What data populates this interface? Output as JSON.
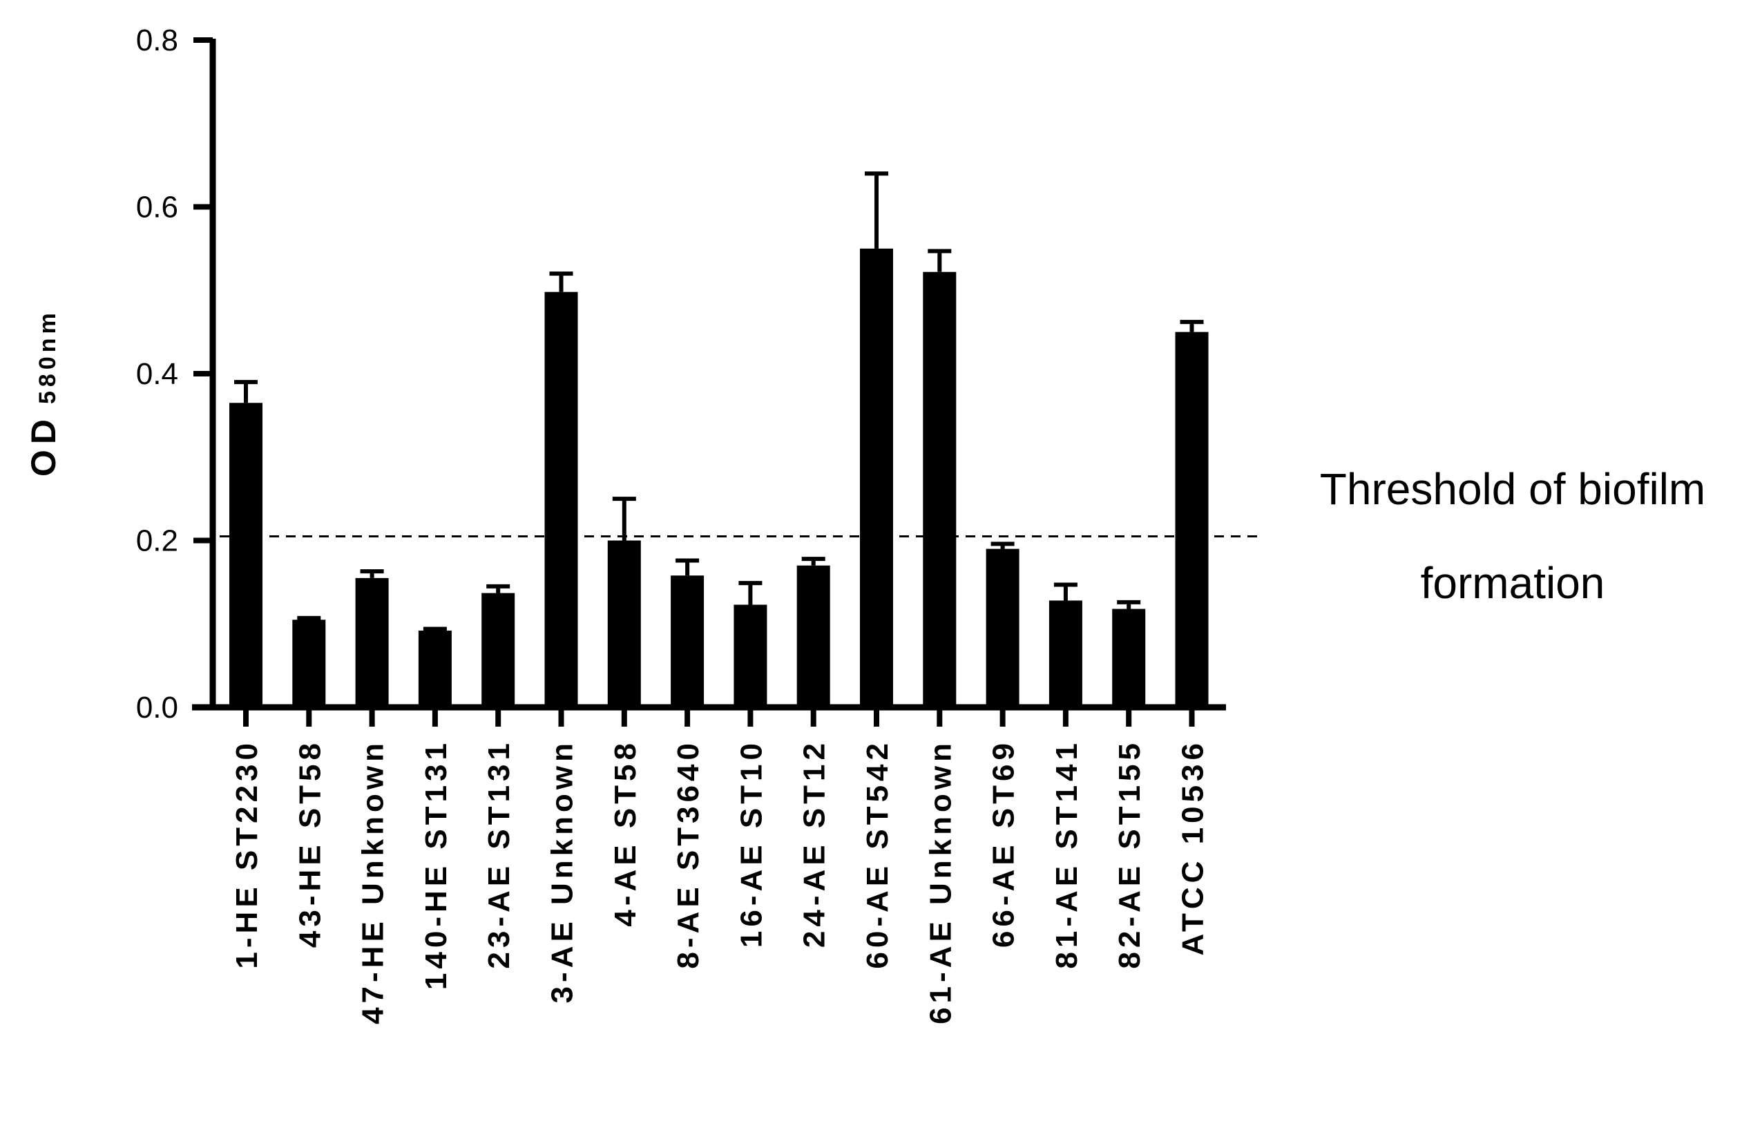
{
  "chart_data": {
    "type": "bar",
    "categories": [
      "1-HE ST2230",
      "43-HE ST58",
      "47-HE Unknown",
      "140-HE ST131",
      "23-AE ST131",
      "3-AE Unknown",
      "4-AE ST58",
      "8-AE ST3640",
      "16-AE ST10",
      "24-AE ST12",
      "60-AE ST542",
      "61-AE Unknown",
      "66-AE ST69",
      "81-AE ST141",
      "82-AE ST155",
      "ATCC 10536"
    ],
    "values": [
      0.365,
      0.105,
      0.155,
      0.092,
      0.137,
      0.498,
      0.2,
      0.158,
      0.123,
      0.17,
      0.55,
      0.522,
      0.19,
      0.128,
      0.118,
      0.45
    ],
    "errors": [
      0.025,
      0.002,
      0.008,
      0.002,
      0.008,
      0.022,
      0.05,
      0.018,
      0.026,
      0.008,
      0.09,
      0.025,
      0.006,
      0.019,
      0.008,
      0.012
    ],
    "ylabel": "OD",
    "ylabel_subscript": "580nm",
    "ylim": [
      0,
      0.8
    ],
    "yticks": [
      "0.0",
      "0.2",
      "0.4",
      "0.6",
      "0.8"
    ],
    "threshold": 0.205,
    "threshold_label_line1": "Threshold of biofilm",
    "threshold_label_line2": "formation",
    "bar_color": "#000000",
    "grid": false
  }
}
